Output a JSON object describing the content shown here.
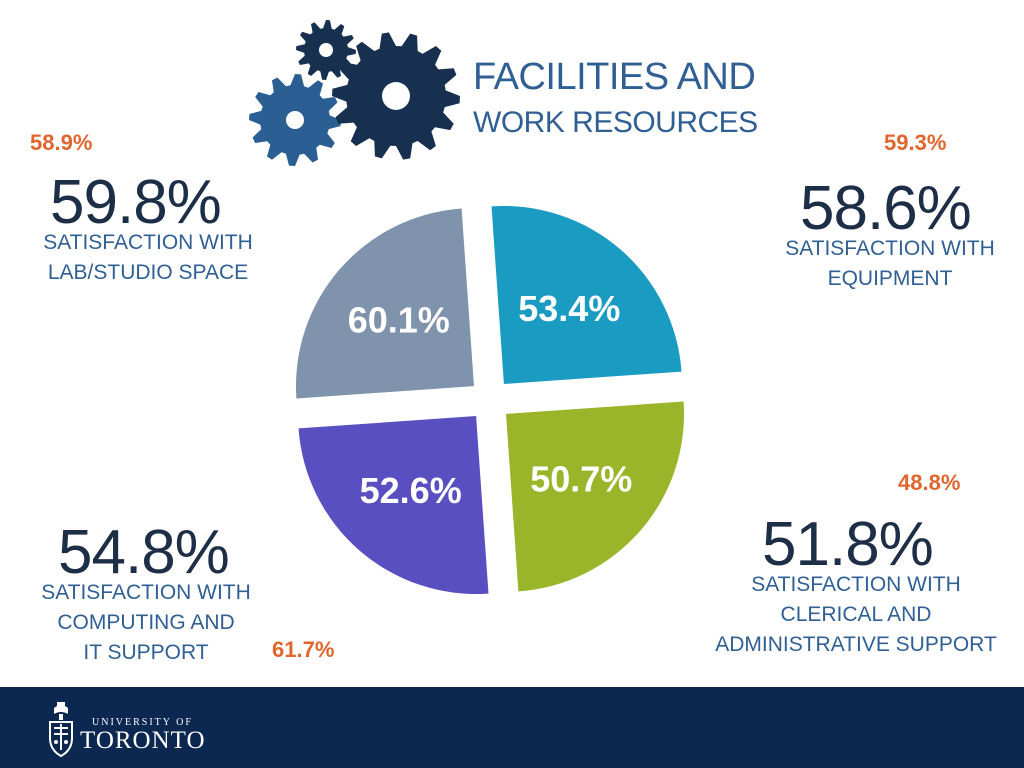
{
  "header": {
    "title_line1": "FACILITIES AND",
    "title_line2": "WORK RESOURCES",
    "icon": "gears-icon"
  },
  "chart_data": {
    "type": "pie",
    "slices": [
      {
        "label": "53.4%",
        "value": 53.4,
        "color": "#1a9bc2",
        "quadrant": "top-right"
      },
      {
        "label": "50.7%",
        "value": 50.7,
        "color": "#9ab52a",
        "quadrant": "bottom-right"
      },
      {
        "label": "52.6%",
        "value": 52.6,
        "color": "#5a4fc0",
        "quadrant": "bottom-left"
      },
      {
        "label": "60.1%",
        "value": 60.1,
        "color": "#7f93ad",
        "quadrant": "top-left"
      }
    ]
  },
  "stats": {
    "lab_studio": {
      "prior": "58.9%",
      "value": "59.8%",
      "caption_line1": "SATISFACTION WITH",
      "caption_line2": "LAB/STUDIO SPACE"
    },
    "equipment": {
      "prior": "59.3%",
      "value": "58.6%",
      "caption_line1": "SATISFACTION WITH",
      "caption_line2": "EQUIPMENT"
    },
    "clerical": {
      "prior": "48.8%",
      "value": "51.8%",
      "caption_line1": "SATISFACTION WITH",
      "caption_line2": "CLERICAL AND",
      "caption_line3": "ADMINISTRATIVE SUPPORT"
    },
    "computing": {
      "prior": "61.7%",
      "value": "54.8%",
      "caption_line1": "SATISFACTION WITH",
      "caption_line2": "COMPUTING AND",
      "caption_line3": "IT SUPPORT"
    }
  },
  "footer": {
    "university_of": "UNIVERSITY OF",
    "toronto": "TORONTO",
    "logo": "crest-icon"
  }
}
